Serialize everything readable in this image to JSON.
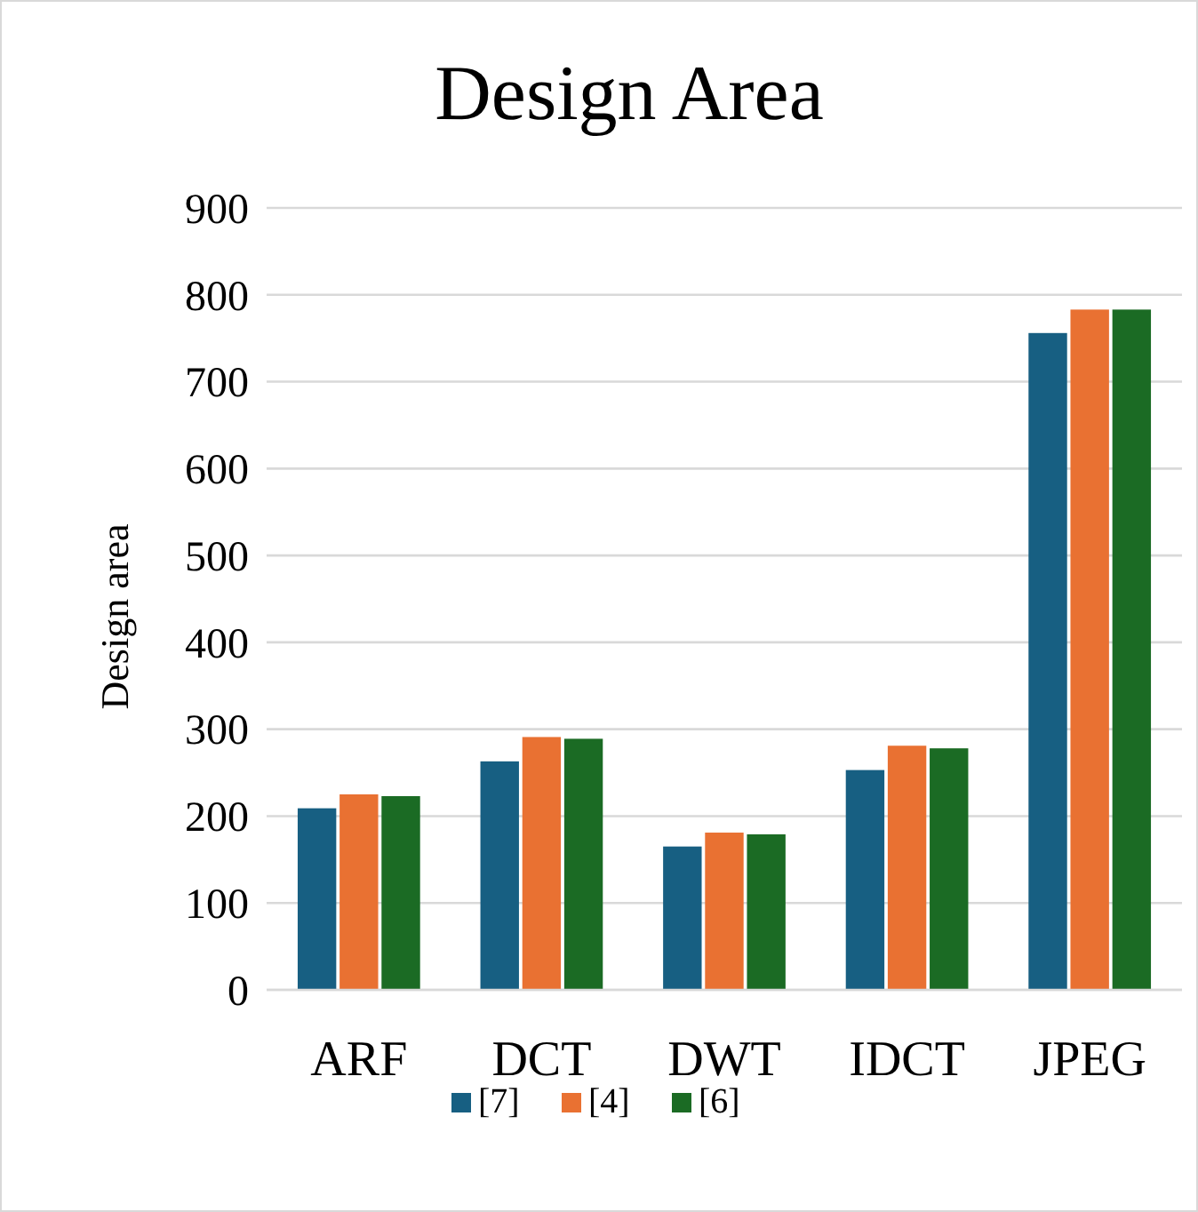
{
  "chart_data": {
    "type": "bar",
    "title": "Design Area",
    "ylabel": "Design area",
    "categories": [
      "ARF",
      "DCT",
      "DWT",
      "IDCT",
      "JPEG"
    ],
    "series": [
      {
        "name": "[7]",
        "color": "#175f82",
        "values": [
          209,
          263,
          165,
          253,
          756
        ]
      },
      {
        "name": "[4]",
        "color": "#e97132",
        "values": [
          225,
          291,
          181,
          281,
          783
        ]
      },
      {
        "name": "[6]",
        "color": "#1b6b24",
        "values": [
          223,
          289,
          179,
          278,
          783
        ]
      }
    ],
    "ylim": [
      0,
      900
    ],
    "yticks": [
      0,
      100,
      200,
      300,
      400,
      500,
      600,
      700,
      800,
      900
    ],
    "grid": "y",
    "legend": "bottom"
  }
}
